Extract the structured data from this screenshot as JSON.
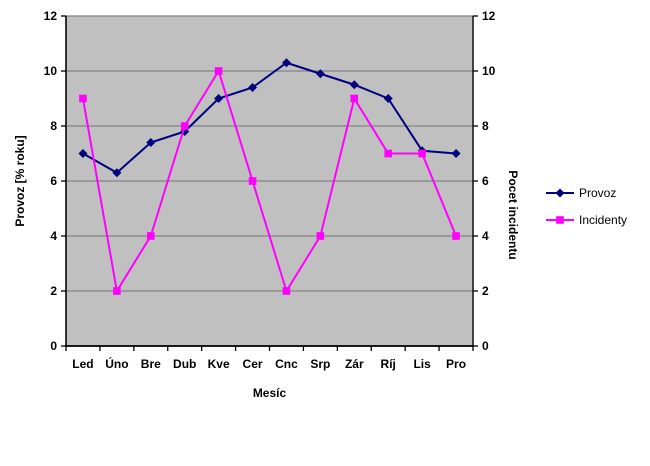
{
  "chart_data": {
    "type": "line",
    "title": "",
    "categories": [
      "Led",
      "Úno",
      "Bre",
      "Dub",
      "Kve",
      "Cer",
      "Cnc",
      "Srp",
      "Zár",
      "Ríj",
      "Lis",
      "Pro"
    ],
    "xlabel": "Mesíc",
    "ylabel_left": "Provoz [% roku]",
    "ylabel_right": "Pocet incidentu",
    "ylim_left": [
      0,
      12
    ],
    "ylim_right": [
      0,
      12
    ],
    "yticks_left": [
      0,
      2,
      4,
      6,
      8,
      10,
      12
    ],
    "yticks_right": [
      0,
      2,
      4,
      6,
      8,
      10,
      12
    ],
    "grid": true,
    "legend_position": "right",
    "plot_bg_color": "#c0c0c0",
    "grid_color": "#848284",
    "axis_color": "#000000",
    "series": [
      {
        "name": "Provoz",
        "axis": "left",
        "color": "#000080",
        "marker": "diamond",
        "values": [
          7.0,
          6.3,
          7.4,
          7.8,
          9.0,
          9.4,
          10.3,
          9.9,
          9.5,
          9.0,
          7.1,
          7.0
        ]
      },
      {
        "name": "Incidenty",
        "axis": "right",
        "color": "#ff00ff",
        "marker": "square",
        "values": [
          9,
          2,
          4,
          8,
          10,
          6,
          2,
          4,
          9,
          7,
          7,
          4
        ]
      }
    ]
  }
}
